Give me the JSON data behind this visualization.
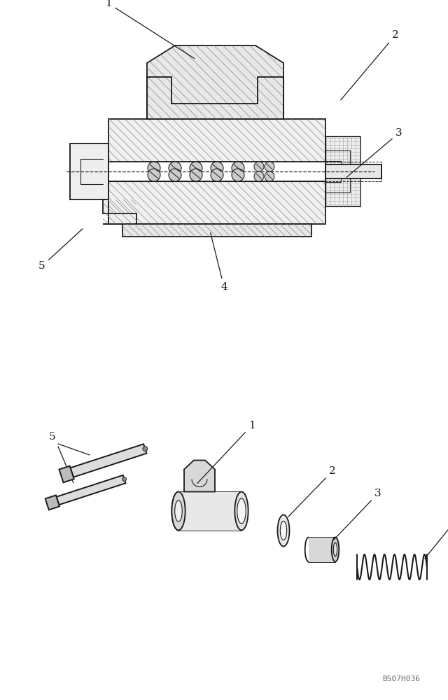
{
  "bg_color": "#ffffff",
  "line_color": "#1a1a1a",
  "figure_size": [
    6.4,
    10.0
  ],
  "dpi": 100,
  "watermark": "BS07H036",
  "label_fontsize": 11
}
